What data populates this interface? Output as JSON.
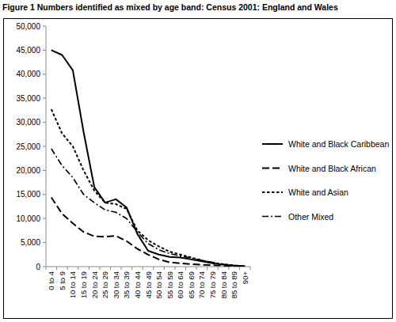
{
  "chart_data": {
    "type": "line",
    "title": "Figure 1 Numbers identified as mixed by age band: Census 2001: England and Wales",
    "categories": [
      "0 to 4",
      "5 to 9",
      "10 to 14",
      "15 to 19",
      "20 to 24",
      "25 to 29",
      "30 to 34",
      "35 to 39",
      "40 to 44",
      "45 to 49",
      "50 to 54",
      "55 to 59",
      "60 to 64",
      "65 to 69",
      "70 to 74",
      "75 to 79",
      "80 to 84",
      "85 to 89",
      "90+"
    ],
    "series": [
      {
        "name": "White and Black Caribbean",
        "color": "#000000",
        "line_style": "solid",
        "values": [
          45000,
          44000,
          40800,
          28000,
          16500,
          13300,
          14000,
          12300,
          6800,
          3300,
          2500,
          2000,
          1900,
          1500,
          1100,
          700,
          400,
          200,
          100
        ]
      },
      {
        "name": "White and Black African",
        "color": "#000000",
        "line_style": "long-dash",
        "values": [
          14400,
          11000,
          9000,
          7200,
          6300,
          6200,
          6400,
          5300,
          3700,
          2500,
          1500,
          900,
          700,
          500,
          400,
          300,
          200,
          100,
          50
        ]
      },
      {
        "name": "White and Asian",
        "color": "#000000",
        "line_style": "short-dash",
        "values": [
          32700,
          27700,
          25000,
          20000,
          15800,
          13300,
          13000,
          12000,
          7500,
          5500,
          4200,
          3100,
          2500,
          1900,
          1300,
          800,
          500,
          250,
          100
        ]
      },
      {
        "name": "Other Mixed",
        "color": "#000000",
        "line_style": "dash-dot",
        "values": [
          24500,
          21000,
          18500,
          15000,
          13300,
          11800,
          11300,
          10000,
          7200,
          4800,
          3500,
          2700,
          2200,
          1800,
          1300,
          900,
          500,
          250,
          100
        ]
      }
    ],
    "ylim": [
      0,
      50000
    ],
    "yticks": [
      0,
      {
        "value": 5000,
        "label": "5,000"
      },
      {
        "value": 10000,
        "label": "10,000"
      },
      {
        "value": 15000,
        "label": "15,000"
      },
      {
        "value": 20000,
        "label": "20,000"
      },
      {
        "value": 25000,
        "label": "25,000"
      },
      {
        "value": 30000,
        "label": "30,000"
      },
      {
        "value": 35000,
        "label": "35,000"
      },
      {
        "value": 40000,
        "label": "40,000"
      },
      {
        "value": 45000,
        "label": "45,000"
      },
      {
        "value": 50000,
        "label": "50,000"
      }
    ],
    "grid": false,
    "legend": "right"
  }
}
